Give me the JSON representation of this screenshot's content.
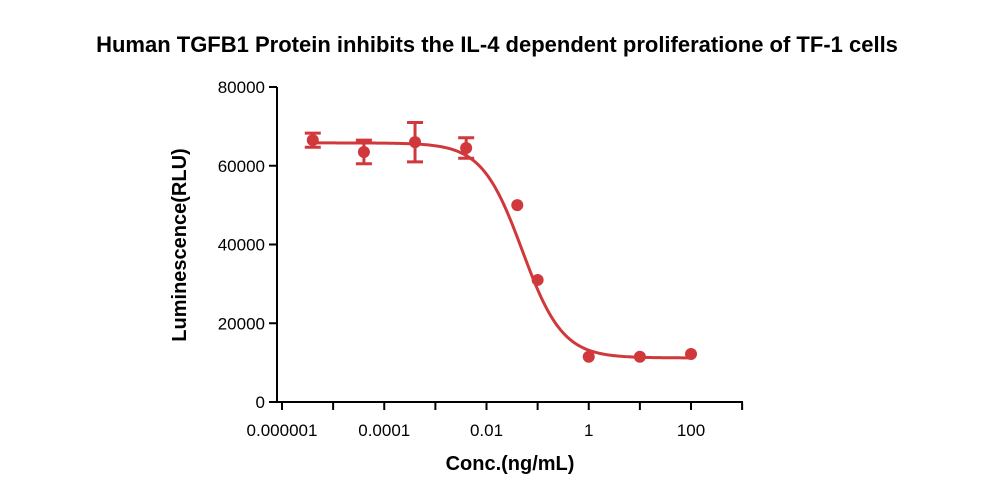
{
  "chart_data": {
    "type": "scatter",
    "title": "Human TGFB1 Protein inhibits the  IL-4 dependent proliferatione of  TF-1 cells",
    "xlabel": "Conc.(ng/mL)",
    "ylabel": "Luminescence(RLU)",
    "x_scale": "log",
    "xlim": [
      1e-06,
      1000
    ],
    "ylim": [
      0,
      80000
    ],
    "x_ticks": [
      1e-06,
      0.0001,
      0.01,
      1,
      100
    ],
    "x_tick_labels": [
      "0.000001",
      "0.0001",
      "0.01",
      "1",
      "100"
    ],
    "y_ticks": [
      0,
      20000,
      40000,
      60000,
      80000
    ],
    "y_tick_labels": [
      "0",
      "20000",
      "40000",
      "60000",
      "80000"
    ],
    "grid": false,
    "color": "#d0383c",
    "series": [
      {
        "x": [
          4e-06,
          4e-05,
          0.0004,
          0.004,
          0.04,
          0.1,
          1,
          10,
          100
        ],
        "y": [
          66500,
          63500,
          66000,
          64500,
          50000,
          31000,
          11500,
          11500,
          12200
        ],
        "error": [
          1800,
          3000,
          5000,
          2600,
          0,
          0,
          0,
          0,
          0
        ]
      }
    ],
    "fit": {
      "type": "4PL",
      "top": 65800,
      "bottom": 11200,
      "ec50": 0.05,
      "hill": 1.1
    }
  }
}
